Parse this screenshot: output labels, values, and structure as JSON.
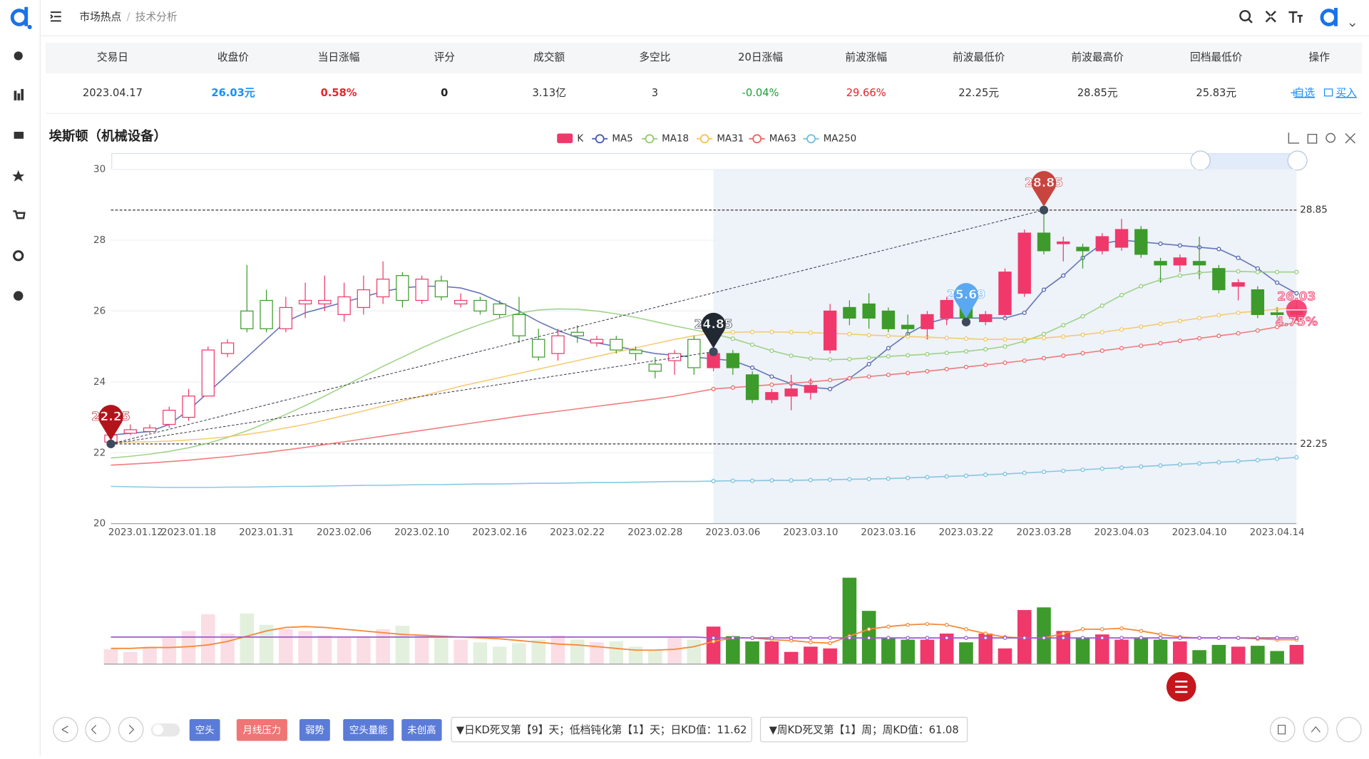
{
  "header": {
    "breadcrumb": [
      "市场热点",
      "技术分析"
    ]
  },
  "table": {
    "columns": [
      "交易日",
      "收盘价",
      "当日涨幅",
      "评分",
      "成交额",
      "多空比",
      "20日涨幅",
      "前波涨幅",
      "前波最低价",
      "前波最高价",
      "回档最低价",
      "操作"
    ],
    "rows": [
      [
        "2023.04.17",
        "26.03元",
        "0.58%",
        "0",
        "3.13亿",
        "3",
        "-0.04%",
        "29.66%",
        "22.25元",
        "28.85元",
        "25.83元"
      ]
    ],
    "actions": [
      "自选",
      "买入"
    ]
  },
  "chart_data": [
    {
      "type": "candlestick",
      "title": "埃斯顿（机械设备）",
      "candle_name": "K",
      "up_color": "#f0386b",
      "down_color": "#3d9b2b",
      "categories": [
        "2023.01.12",
        null,
        null,
        null,
        "2023.01.18",
        null,
        null,
        null,
        "2023.01.31",
        null,
        null,
        null,
        "2023.02.06",
        null,
        null,
        null,
        "2023.02.10",
        null,
        null,
        null,
        "2023.02.16",
        null,
        null,
        null,
        "2023.02.22",
        null,
        null,
        null,
        "2023.02.28",
        null,
        null,
        null,
        "2023.03.06",
        null,
        null,
        null,
        "2023.03.10",
        null,
        null,
        null,
        "2023.03.16",
        null,
        null,
        null,
        "2023.03.22",
        null,
        null,
        null,
        "2023.03.28",
        null,
        null,
        null,
        "2023.04.03",
        null,
        null,
        null,
        "2023.04.10",
        null,
        null,
        null,
        "2023.04.14",
        null
      ],
      "open": [
        22.3,
        22.55,
        22.6,
        22.8,
        23.0,
        23.6,
        24.8,
        26.0,
        26.3,
        25.5,
        26.2,
        26.2,
        25.9,
        26.1,
        26.4,
        27.0,
        26.3,
        26.85,
        26.2,
        26.3,
        26.2,
        25.9,
        25.2,
        24.8,
        25.4,
        25.1,
        25.2,
        24.9,
        24.5,
        24.6,
        25.2,
        24.4,
        24.8,
        24.2,
        23.5,
        23.6,
        23.7,
        24.9,
        26.1,
        26.2,
        26.0,
        25.6,
        25.5,
        25.8,
        26.1,
        25.7,
        25.9,
        26.5,
        28.2,
        27.9,
        27.8,
        27.7,
        27.8,
        28.3,
        27.4,
        27.3,
        27.4,
        27.2,
        26.7,
        26.6,
        25.95,
        25.9
      ],
      "close": [
        22.5,
        22.65,
        22.7,
        23.2,
        23.6,
        24.9,
        25.1,
        25.5,
        25.5,
        26.1,
        26.3,
        26.3,
        26.4,
        26.6,
        26.9,
        26.3,
        26.9,
        26.4,
        26.3,
        26.0,
        25.9,
        25.3,
        24.7,
        25.3,
        25.3,
        25.2,
        24.9,
        24.8,
        24.3,
        24.8,
        24.4,
        24.8,
        24.4,
        23.5,
        23.7,
        23.8,
        23.9,
        26.0,
        25.8,
        25.8,
        25.5,
        25.5,
        25.9,
        26.3,
        25.8,
        25.9,
        27.1,
        28.2,
        27.7,
        27.95,
        27.7,
        28.1,
        28.3,
        27.6,
        27.3,
        27.5,
        27.3,
        26.6,
        26.8,
        25.9,
        25.9,
        26.03
      ],
      "low": [
        22.25,
        22.5,
        22.55,
        22.7,
        22.9,
        23.6,
        24.7,
        25.4,
        25.4,
        25.4,
        25.8,
        26.0,
        25.7,
        25.9,
        26.2,
        26.1,
        26.2,
        26.3,
        26.1,
        25.9,
        25.8,
        25.1,
        24.6,
        24.6,
        25.1,
        25.0,
        24.8,
        24.6,
        24.1,
        24.2,
        24.2,
        24.3,
        24.2,
        23.4,
        23.4,
        23.2,
        23.5,
        24.8,
        25.6,
        25.5,
        25.4,
        25.3,
        25.2,
        25.6,
        25.7,
        25.6,
        25.8,
        26.4,
        27.6,
        27.4,
        27.2,
        27.6,
        27.7,
        27.5,
        26.8,
        27.1,
        26.9,
        26.5,
        26.3,
        25.8,
        25.8,
        25.8
      ],
      "high": [
        22.6,
        22.8,
        22.8,
        23.3,
        23.8,
        25.0,
        25.2,
        27.3,
        26.6,
        26.4,
        26.8,
        27.0,
        26.8,
        27.0,
        27.4,
        27.1,
        27.0,
        27.0,
        26.5,
        26.4,
        26.3,
        26.4,
        25.5,
        25.5,
        25.6,
        25.3,
        25.3,
        25.0,
        24.7,
        24.9,
        25.3,
        24.85,
        24.9,
        24.3,
        23.8,
        24.2,
        24.1,
        26.2,
        26.3,
        26.5,
        26.1,
        25.9,
        26.0,
        26.4,
        26.3,
        26.0,
        27.2,
        28.3,
        28.85,
        28.1,
        27.9,
        28.2,
        28.6,
        28.4,
        27.5,
        27.6,
        28.1,
        27.3,
        26.9,
        26.7,
        26.1,
        26.3
      ],
      "series": [
        {
          "name": "MA5",
          "color": "#4b5fae",
          "values": [
            22.5,
            22.55,
            22.6,
            22.8,
            23.2,
            23.7,
            24.2,
            24.7,
            25.2,
            25.7,
            25.95,
            26.1,
            26.25,
            26.4,
            26.55,
            26.65,
            26.7,
            26.7,
            26.65,
            26.5,
            26.25,
            26.0,
            25.7,
            25.45,
            25.25,
            25.1,
            25.0,
            24.9,
            24.8,
            24.75,
            24.7,
            24.65,
            24.6,
            24.4,
            24.15,
            23.95,
            23.85,
            23.8,
            24.1,
            24.5,
            24.95,
            25.35,
            25.65,
            25.8,
            25.8,
            25.8,
            25.8,
            25.95,
            26.6,
            27.0,
            27.5,
            27.9,
            28.0,
            27.95,
            27.9,
            27.85,
            27.8,
            27.75,
            27.5,
            27.2,
            26.8,
            26.5
          ]
        },
        {
          "name": "MA18",
          "color": "#91cc75",
          "values": [
            21.85,
            21.9,
            21.96,
            22.04,
            22.14,
            22.27,
            22.43,
            22.62,
            22.84,
            23.08,
            23.33,
            23.6,
            23.88,
            24.16,
            24.44,
            24.7,
            24.96,
            25.2,
            25.42,
            25.62,
            25.8,
            25.94,
            26.03,
            26.06,
            26.05,
            26.0,
            25.92,
            25.82,
            25.7,
            25.58,
            25.47,
            25.36,
            25.22,
            25.05,
            24.88,
            24.74,
            24.66,
            24.63,
            24.64,
            24.68,
            24.72,
            24.75,
            24.78,
            24.82,
            24.86,
            24.92,
            25.0,
            25.15,
            25.35,
            25.6,
            25.85,
            26.15,
            26.45,
            26.7,
            26.88,
            27.0,
            27.08,
            27.12,
            27.12,
            27.1,
            27.1,
            27.1
          ]
        },
        {
          "name": "MA31",
          "color": "#f5c35a",
          "values": [
            22.3,
            22.3,
            22.31,
            22.33,
            22.36,
            22.4,
            22.45,
            22.52,
            22.6,
            22.7,
            22.8,
            22.92,
            23.05,
            23.18,
            23.32,
            23.46,
            23.6,
            23.74,
            23.88,
            24.0,
            24.12,
            24.24,
            24.36,
            24.48,
            24.6,
            24.72,
            24.84,
            24.96,
            25.08,
            25.2,
            25.3,
            25.38,
            25.4,
            25.41,
            25.41,
            25.4,
            25.39,
            25.37,
            25.35,
            25.32,
            25.3,
            25.28,
            25.26,
            25.24,
            25.22,
            25.2,
            25.2,
            25.21,
            25.24,
            25.28,
            25.33,
            25.4,
            25.48,
            25.56,
            25.64,
            25.72,
            25.8,
            25.88,
            25.95,
            26.0,
            26.05,
            26.1
          ]
        },
        {
          "name": "MA63",
          "color": "#ee6666",
          "values": [
            21.65,
            21.68,
            21.71,
            21.75,
            21.79,
            21.84,
            21.89,
            21.95,
            22.01,
            22.08,
            22.15,
            22.23,
            22.31,
            22.39,
            22.47,
            22.55,
            22.63,
            22.71,
            22.79,
            22.87,
            22.95,
            23.03,
            23.1,
            23.17,
            23.24,
            23.31,
            23.38,
            23.45,
            23.52,
            23.6,
            23.7,
            23.8,
            23.84,
            23.88,
            23.92,
            23.96,
            24.0,
            24.05,
            24.1,
            24.15,
            24.2,
            24.25,
            24.3,
            24.36,
            24.42,
            24.48,
            24.54,
            24.6,
            24.67,
            24.74,
            24.81,
            24.88,
            24.95,
            25.02,
            25.09,
            25.16,
            25.23,
            25.3,
            25.37,
            25.45,
            25.55,
            25.69
          ]
        },
        {
          "name": "MA250",
          "color": "#73c0de",
          "values": [
            21.05,
            21.04,
            21.03,
            21.02,
            21.02,
            21.02,
            21.03,
            21.03,
            21.04,
            21.05,
            21.05,
            21.06,
            21.07,
            21.08,
            21.08,
            21.09,
            21.1,
            21.1,
            21.11,
            21.12,
            21.12,
            21.13,
            21.14,
            21.14,
            21.15,
            21.16,
            21.16,
            21.17,
            21.18,
            21.19,
            21.19,
            21.2,
            21.21,
            21.21,
            21.22,
            21.22,
            21.23,
            21.24,
            21.25,
            21.26,
            21.27,
            21.29,
            21.31,
            21.33,
            21.35,
            21.38,
            21.4,
            21.43,
            21.46,
            21.49,
            21.52,
            21.55,
            21.58,
            21.61,
            21.64,
            21.67,
            21.7,
            21.73,
            21.76,
            21.79,
            21.83,
            21.87
          ]
        }
      ],
      "ylim": [
        20,
        30
      ],
      "yticks": [
        20,
        22,
        24,
        26,
        28,
        30
      ],
      "ref_lines": [
        28.85,
        22.25
      ],
      "highlight_from": 31,
      "markers": [
        {
          "index": 0,
          "value": 22.25,
          "color": "#b3141c"
        },
        {
          "index": 31,
          "value": 24.85,
          "color": "#222831"
        },
        {
          "index": 44,
          "value": 25.69,
          "color": "#5aa9f0"
        },
        {
          "index": 48,
          "value": 28.85,
          "color": "#c8443f"
        }
      ],
      "last_marker": {
        "index": 61,
        "value": 26.03,
        "change": "4.75%",
        "color": "#f0386b"
      }
    },
    {
      "type": "bar",
      "ylim": [
        0,
        100
      ],
      "values": [
        17,
        14,
        20,
        30,
        38,
        57,
        35,
        58,
        45,
        40,
        38,
        33,
        30,
        32,
        40,
        44,
        34,
        30,
        28,
        25,
        20,
        24,
        28,
        33,
        28,
        25,
        26,
        20,
        16,
        30,
        28,
        43,
        32,
        26,
        26,
        14,
        20,
        18,
        99,
        61,
        30,
        28,
        28,
        35,
        25,
        35,
        18,
        62,
        65,
        38,
        30,
        34,
        28,
        30,
        28,
        26,
        16,
        22,
        20,
        21,
        15,
        22
      ],
      "series": [
        {
          "color": "#f58a3a",
          "values": [
            18,
            18,
            19,
            19,
            20,
            22,
            26,
            32,
            38,
            42,
            43,
            42,
            40,
            38,
            36,
            34,
            33,
            32,
            31,
            30,
            29,
            27,
            25,
            23,
            22,
            20,
            18,
            16,
            16,
            17,
            20,
            26,
            30,
            30,
            28,
            27,
            25,
            24,
            32,
            40,
            43,
            45,
            46,
            45,
            40,
            35,
            31,
            30,
            30,
            35,
            40,
            40,
            41,
            38,
            34,
            31,
            30,
            30,
            30,
            29,
            28,
            28
          ]
        },
        {
          "color": "#9b59d0",
          "values": [
            31,
            31,
            31,
            31,
            31,
            31,
            31,
            31,
            31,
            31,
            31,
            31,
            31,
            31,
            31,
            31,
            31,
            31,
            31,
            31,
            31,
            31,
            31,
            31,
            31,
            31,
            31,
            31,
            31,
            31,
            31,
            30,
            30,
            30,
            30,
            30,
            30,
            30,
            30,
            30,
            30,
            30,
            30,
            30,
            30,
            30,
            30,
            30,
            30,
            30,
            30,
            30,
            30,
            30,
            30,
            30,
            30,
            30,
            30,
            30,
            30,
            30
          ]
        }
      ]
    }
  ],
  "buttons": [
    "空头",
    "月线压力",
    "弱势",
    "空头量能",
    "未创高"
  ],
  "notes": [
    "▼日KD死叉第【9】天；低档钝化第【1】天；日KD值：11.62",
    "▼周KD死叉第【1】周；周KD值：61.08"
  ]
}
